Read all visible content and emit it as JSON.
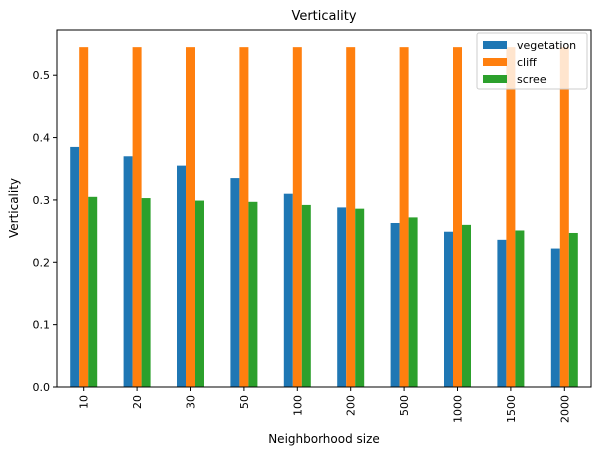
{
  "chart_data": {
    "type": "bar",
    "title": "Verticality",
    "xlabel": "Neighborhood size",
    "ylabel": "Verticality",
    "categories": [
      "10",
      "20",
      "30",
      "50",
      "100",
      "200",
      "500",
      "1000",
      "1500",
      "2000"
    ],
    "series": [
      {
        "name": "vegetation",
        "color": "#1f77b4",
        "values": [
          0.385,
          0.37,
          0.355,
          0.335,
          0.31,
          0.288,
          0.263,
          0.249,
          0.236,
          0.222
        ]
      },
      {
        "name": "cliff",
        "color": "#ff7f0e",
        "values": [
          0.545,
          0.545,
          0.545,
          0.545,
          0.545,
          0.545,
          0.545,
          0.545,
          0.545,
          0.545
        ]
      },
      {
        "name": "scree",
        "color": "#2ca02c",
        "values": [
          0.305,
          0.303,
          0.299,
          0.297,
          0.292,
          0.286,
          0.272,
          0.26,
          0.251,
          0.247
        ]
      }
    ],
    "yticks": [
      "0.0",
      "0.1",
      "0.2",
      "0.3",
      "0.4",
      "0.5"
    ],
    "ylim": [
      0,
      0.5725
    ],
    "legend_position": "top-right",
    "grid": false
  }
}
